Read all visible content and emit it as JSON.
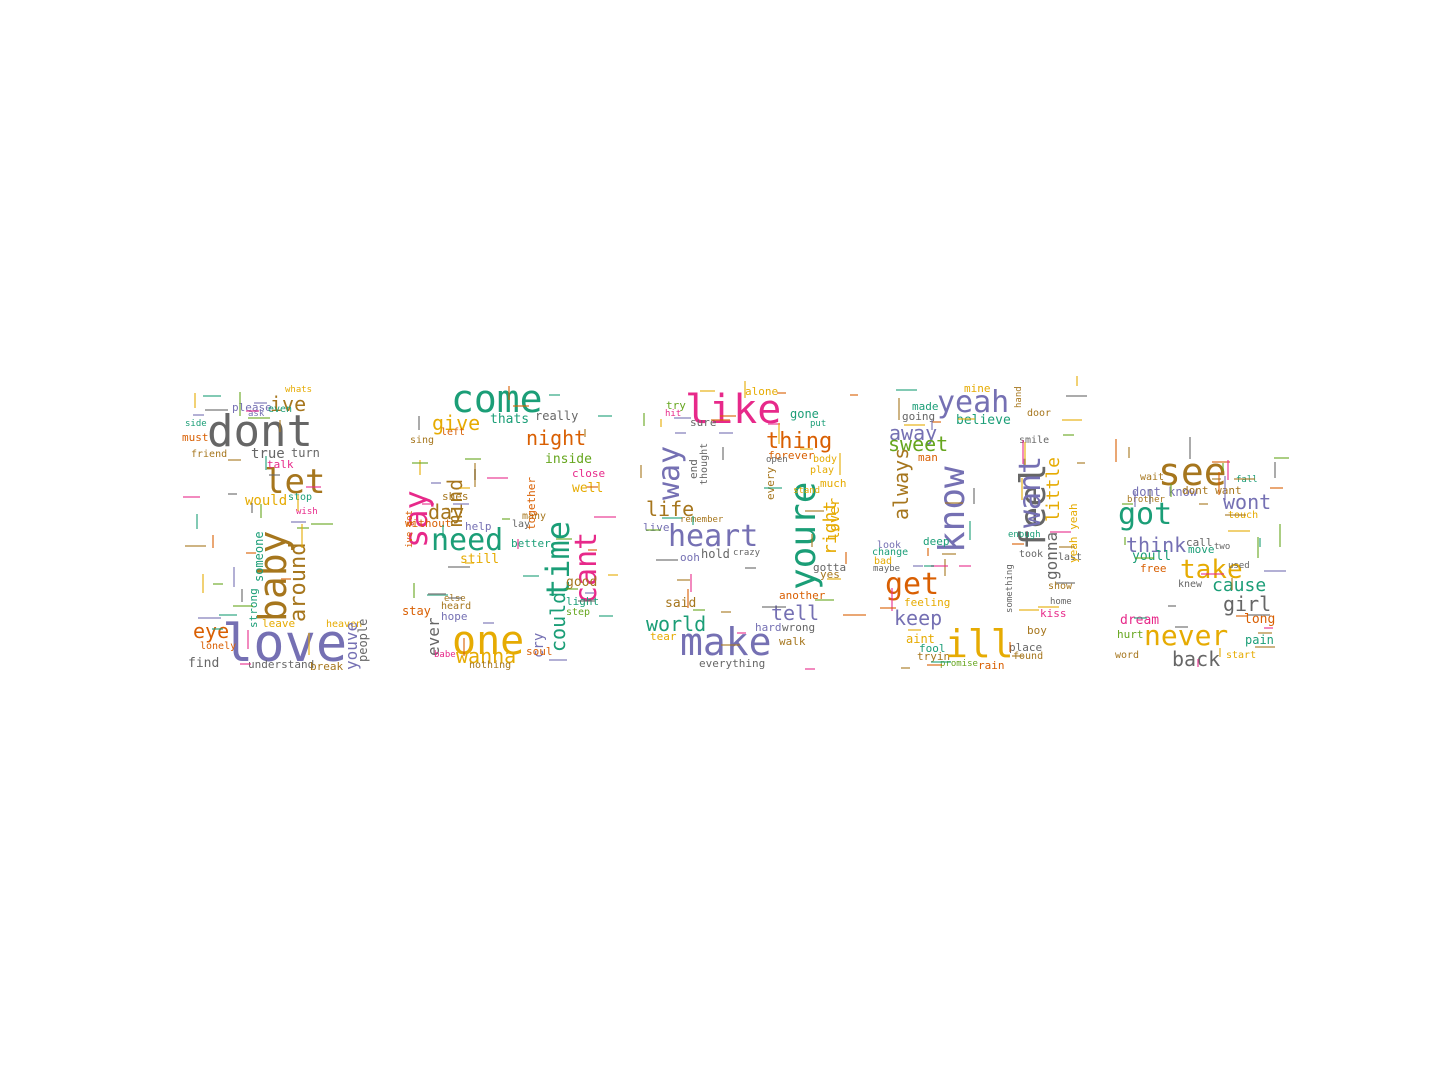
{
  "palette": {
    "green": "#1b9e77",
    "orange": "#d95f02",
    "purple": "#7570b3",
    "pink": "#e7298a",
    "lime": "#66a61e",
    "gold": "#e6ab02",
    "brown": "#a6761d",
    "gray": "#666666"
  },
  "words": [
    {
      "text": "dont",
      "color": "gray",
      "rot": 0
    },
    {
      "text": "love",
      "color": "purple",
      "rot": 0
    },
    {
      "text": "let",
      "color": "brown",
      "rot": 0
    },
    {
      "text": "ive",
      "color": "brown",
      "rot": 0
    },
    {
      "text": "baby",
      "color": "brown",
      "rot": 90
    },
    {
      "text": "around",
      "color": "brown",
      "rot": 90
    },
    {
      "text": "eye",
      "color": "orange",
      "rot": 0
    },
    {
      "text": "please",
      "color": "purple",
      "rot": 0
    },
    {
      "text": "whats",
      "color": "gold",
      "rot": 0
    },
    {
      "text": "even",
      "color": "green",
      "rot": 0
    },
    {
      "text": "ask",
      "color": "purple",
      "rot": 0
    },
    {
      "text": "side",
      "color": "green",
      "rot": 0
    },
    {
      "text": "must",
      "color": "orange",
      "rot": 0
    },
    {
      "text": "friend",
      "color": "brown",
      "rot": 0
    },
    {
      "text": "true",
      "color": "gray",
      "rot": 0
    },
    {
      "text": "turn",
      "color": "gray",
      "rot": 0
    },
    {
      "text": "talk",
      "color": "pink",
      "rot": 0
    },
    {
      "text": "would",
      "color": "gold",
      "rot": 0
    },
    {
      "text": "stop",
      "color": "green",
      "rot": 0
    },
    {
      "text": "wish",
      "color": "pink",
      "rot": 0
    },
    {
      "text": "someone",
      "color": "green",
      "rot": 90
    },
    {
      "text": "strong",
      "color": "green",
      "rot": 90
    },
    {
      "text": "leave",
      "color": "gold",
      "rot": 0
    },
    {
      "text": "heaven",
      "color": "gold",
      "rot": 0
    },
    {
      "text": "youve",
      "color": "purple",
      "rot": 90
    },
    {
      "text": "people",
      "color": "gray",
      "rot": 90
    },
    {
      "text": "lonely",
      "color": "orange",
      "rot": 0
    },
    {
      "text": "find",
      "color": "gray",
      "rot": 0
    },
    {
      "text": "understand",
      "color": "gray",
      "rot": 0
    },
    {
      "text": "break",
      "color": "brown",
      "rot": 0
    },
    {
      "text": "come",
      "color": "green",
      "rot": 0
    },
    {
      "text": "say",
      "color": "pink",
      "rot": 90
    },
    {
      "text": "give",
      "color": "gold",
      "rot": 0
    },
    {
      "text": "mind",
      "color": "brown",
      "rot": 90
    },
    {
      "text": "night",
      "color": "orange",
      "rot": 0
    },
    {
      "text": "thats",
      "color": "green",
      "rot": 0
    },
    {
      "text": "really",
      "color": "gray",
      "rot": 0
    },
    {
      "text": "left",
      "color": "orange",
      "rot": 0
    },
    {
      "text": "sing",
      "color": "brown",
      "rot": 0
    },
    {
      "text": "inside",
      "color": "lime",
      "rot": 0
    },
    {
      "text": "close",
      "color": "pink",
      "rot": 0
    },
    {
      "text": "well",
      "color": "gold",
      "rot": 0
    },
    {
      "text": "time",
      "color": "green",
      "rot": 90
    },
    {
      "text": "cant",
      "color": "pink",
      "rot": 90
    },
    {
      "text": "could",
      "color": "green",
      "rot": 90
    },
    {
      "text": "day",
      "color": "brown",
      "rot": 0
    },
    {
      "text": "need",
      "color": "green",
      "rot": 0
    },
    {
      "text": "shes",
      "color": "brown",
      "rot": 0
    },
    {
      "text": "without",
      "color": "orange",
      "rot": 0
    },
    {
      "text": "help",
      "color": "purple",
      "rot": 0
    },
    {
      "text": "lay",
      "color": "gray",
      "rot": 0
    },
    {
      "text": "still",
      "color": "gold",
      "rot": 0
    },
    {
      "text": "better",
      "color": "green",
      "rot": 0
    },
    {
      "text": "many",
      "color": "brown",
      "rot": 0
    },
    {
      "text": "together",
      "color": "orange",
      "rot": 90
    },
    {
      "text": "good",
      "color": "brown",
      "rot": 0
    },
    {
      "text": "light",
      "color": "green",
      "rot": 0
    },
    {
      "text": "step",
      "color": "lime",
      "rot": 0
    },
    {
      "text": "stay",
      "color": "orange",
      "rot": 0
    },
    {
      "text": "ever",
      "color": "gray",
      "rot": 90
    },
    {
      "text": "else",
      "color": "brown",
      "rot": 0
    },
    {
      "text": "heard",
      "color": "brown",
      "rot": 0
    },
    {
      "text": "hope",
      "color": "purple",
      "rot": 0
    },
    {
      "text": "one",
      "color": "gold",
      "rot": 0
    },
    {
      "text": "wanna",
      "color": "gold",
      "rot": 0
    },
    {
      "text": "cry",
      "color": "purple",
      "rot": 90
    },
    {
      "text": "soul",
      "color": "orange",
      "rot": 0
    },
    {
      "text": "nothing",
      "color": "brown",
      "rot": 0
    },
    {
      "text": "babe",
      "color": "pink",
      "rot": 0
    },
    {
      "text": "ive got",
      "color": "orange",
      "rot": 90
    },
    {
      "text": "like",
      "color": "pink",
      "rot": 0
    },
    {
      "text": "way",
      "color": "purple",
      "rot": 90
    },
    {
      "text": "thing",
      "color": "orange",
      "rot": 0
    },
    {
      "text": "alone",
      "color": "gold",
      "rot": 0
    },
    {
      "text": "gone",
      "color": "green",
      "rot": 0
    },
    {
      "text": "put",
      "color": "green",
      "rot": 0
    },
    {
      "text": "try",
      "color": "lime",
      "rot": 0
    },
    {
      "text": "sure",
      "color": "gray",
      "rot": 0
    },
    {
      "text": "hit",
      "color": "pink",
      "rot": 0
    },
    {
      "text": "life",
      "color": "brown",
      "rot": 0
    },
    {
      "text": "end",
      "color": "gray",
      "rot": 90
    },
    {
      "text": "thought",
      "color": "gray",
      "rot": 90
    },
    {
      "text": "heart",
      "color": "purple",
      "rot": 0
    },
    {
      "text": "live",
      "color": "purple",
      "rot": 0
    },
    {
      "text": "hold",
      "color": "gray",
      "rot": 0
    },
    {
      "text": "ooh",
      "color": "purple",
      "rot": 0
    },
    {
      "text": "crazy",
      "color": "gray",
      "rot": 0
    },
    {
      "text": "remember",
      "color": "brown",
      "rot": 0
    },
    {
      "text": "forever",
      "color": "orange",
      "rot": 0
    },
    {
      "text": "open",
      "color": "gray",
      "rot": 0
    },
    {
      "text": "body",
      "color": "gold",
      "rot": 0
    },
    {
      "text": "play",
      "color": "gold",
      "rot": 0
    },
    {
      "text": "youre",
      "color": "green",
      "rot": 90
    },
    {
      "text": "right",
      "color": "gold",
      "rot": 90
    },
    {
      "text": "much",
      "color": "gold",
      "rot": 0
    },
    {
      "text": "stand",
      "color": "gold",
      "rot": 0
    },
    {
      "text": "lover",
      "color": "gold",
      "rot": 90
    },
    {
      "text": "every",
      "color": "brown",
      "rot": 90
    },
    {
      "text": "gotta",
      "color": "gray",
      "rot": 0
    },
    {
      "text": "yes",
      "color": "brown",
      "rot": 0
    },
    {
      "text": "said",
      "color": "brown",
      "rot": 0
    },
    {
      "text": "another",
      "color": "orange",
      "rot": 0
    },
    {
      "text": "tell",
      "color": "purple",
      "rot": 0
    },
    {
      "text": "world",
      "color": "green",
      "rot": 0
    },
    {
      "text": "tear",
      "color": "gold",
      "rot": 0
    },
    {
      "text": "make",
      "color": "purple",
      "rot": 0
    },
    {
      "text": "hard",
      "color": "purple",
      "rot": 0
    },
    {
      "text": "wrong",
      "color": "gray",
      "rot": 0
    },
    {
      "text": "walk",
      "color": "brown",
      "rot": 0
    },
    {
      "text": "everything",
      "color": "gray",
      "rot": 0
    },
    {
      "text": "yeah",
      "color": "purple",
      "rot": 0
    },
    {
      "text": "mine",
      "color": "gold",
      "rot": 0
    },
    {
      "text": "made",
      "color": "green",
      "rot": 0
    },
    {
      "text": "going",
      "color": "gray",
      "rot": 0
    },
    {
      "text": "away",
      "color": "purple",
      "rot": 0
    },
    {
      "text": "believe",
      "color": "green",
      "rot": 0
    },
    {
      "text": "man",
      "color": "orange",
      "rot": 0
    },
    {
      "text": "sweet",
      "color": "lime",
      "rot": 0
    },
    {
      "text": "know",
      "color": "purple",
      "rot": 90
    },
    {
      "text": "always",
      "color": "brown",
      "rot": 90
    },
    {
      "text": "get",
      "color": "orange",
      "rot": 0
    },
    {
      "text": "look",
      "color": "purple",
      "rot": 0
    },
    {
      "text": "change",
      "color": "green",
      "rot": 0
    },
    {
      "text": "bad",
      "color": "gold",
      "rot": 0
    },
    {
      "text": "maybe",
      "color": "gray",
      "rot": 0
    },
    {
      "text": "feeling",
      "color": "gold",
      "rot": 0
    },
    {
      "text": "keep",
      "color": "purple",
      "rot": 0
    },
    {
      "text": "aint",
      "color": "gold",
      "rot": 0
    },
    {
      "text": "fool",
      "color": "green",
      "rot": 0
    },
    {
      "text": "tryin",
      "color": "brown",
      "rot": 0
    },
    {
      "text": "ill",
      "color": "gold",
      "rot": 0
    },
    {
      "text": "rain",
      "color": "orange",
      "rot": 0
    },
    {
      "text": "promise",
      "color": "lime",
      "rot": 0
    },
    {
      "text": "feel",
      "color": "gray",
      "rot": 90
    },
    {
      "text": "want",
      "color": "purple",
      "rot": 90
    },
    {
      "text": "gonna",
      "color": "gray",
      "rot": 90
    },
    {
      "text": "little",
      "color": "gold",
      "rot": 90
    },
    {
      "text": "smile",
      "color": "gray",
      "rot": 0
    },
    {
      "text": "door",
      "color": "brown",
      "rot": 0
    },
    {
      "text": "hand",
      "color": "brown",
      "rot": 90
    },
    {
      "text": "deep",
      "color": "green",
      "rot": 0
    },
    {
      "text": "enough",
      "color": "green",
      "rot": 0
    },
    {
      "text": "took",
      "color": "gray",
      "rot": 0
    },
    {
      "text": "last",
      "color": "gray",
      "rot": 0
    },
    {
      "text": "show",
      "color": "brown",
      "rot": 0
    },
    {
      "text": "home",
      "color": "gray",
      "rot": 0
    },
    {
      "text": "kiss",
      "color": "pink",
      "rot": 0
    },
    {
      "text": "boy",
      "color": "brown",
      "rot": 0
    },
    {
      "text": "place",
      "color": "gray",
      "rot": 0
    },
    {
      "text": "found",
      "color": "brown",
      "rot": 0
    },
    {
      "text": "yeah yeah",
      "color": "gold",
      "rot": 90
    },
    {
      "text": "something",
      "color": "gray",
      "rot": 90
    },
    {
      "text": "see",
      "color": "brown",
      "rot": 0
    },
    {
      "text": "wait",
      "color": "brown",
      "rot": 0
    },
    {
      "text": "dont know",
      "color": "purple",
      "rot": 0
    },
    {
      "text": "dont want",
      "color": "brown",
      "rot": 0
    },
    {
      "text": "got",
      "color": "green",
      "rot": 0
    },
    {
      "text": "wont",
      "color": "purple",
      "rot": 0
    },
    {
      "text": "think",
      "color": "purple",
      "rot": 0
    },
    {
      "text": "youll",
      "color": "green",
      "rot": 0
    },
    {
      "text": "call",
      "color": "gray",
      "rot": 0
    },
    {
      "text": "move",
      "color": "green",
      "rot": 0
    },
    {
      "text": "take",
      "color": "gold",
      "rot": 0
    },
    {
      "text": "cause",
      "color": "green",
      "rot": 0
    },
    {
      "text": "knew",
      "color": "gray",
      "rot": 0
    },
    {
      "text": "girl",
      "color": "gray",
      "rot": 0
    },
    {
      "text": "touch",
      "color": "gold",
      "rot": 0
    },
    {
      "text": "free",
      "color": "orange",
      "rot": 0
    },
    {
      "text": "dream",
      "color": "pink",
      "rot": 0
    },
    {
      "text": "long",
      "color": "orange",
      "rot": 0
    },
    {
      "text": "hurt",
      "color": "lime",
      "rot": 0
    },
    {
      "text": "never",
      "color": "gold",
      "rot": 0
    },
    {
      "text": "pain",
      "color": "green",
      "rot": 0
    },
    {
      "text": "word",
      "color": "brown",
      "rot": 0
    },
    {
      "text": "back",
      "color": "gray",
      "rot": 0
    },
    {
      "text": "start",
      "color": "gold",
      "rot": 0
    },
    {
      "text": "brother",
      "color": "brown",
      "rot": 0
    },
    {
      "text": "fall",
      "color": "green",
      "rot": 0
    },
    {
      "text": "used",
      "color": "gray",
      "rot": 0
    },
    {
      "text": "two",
      "color": "gray",
      "rot": 0
    }
  ]
}
